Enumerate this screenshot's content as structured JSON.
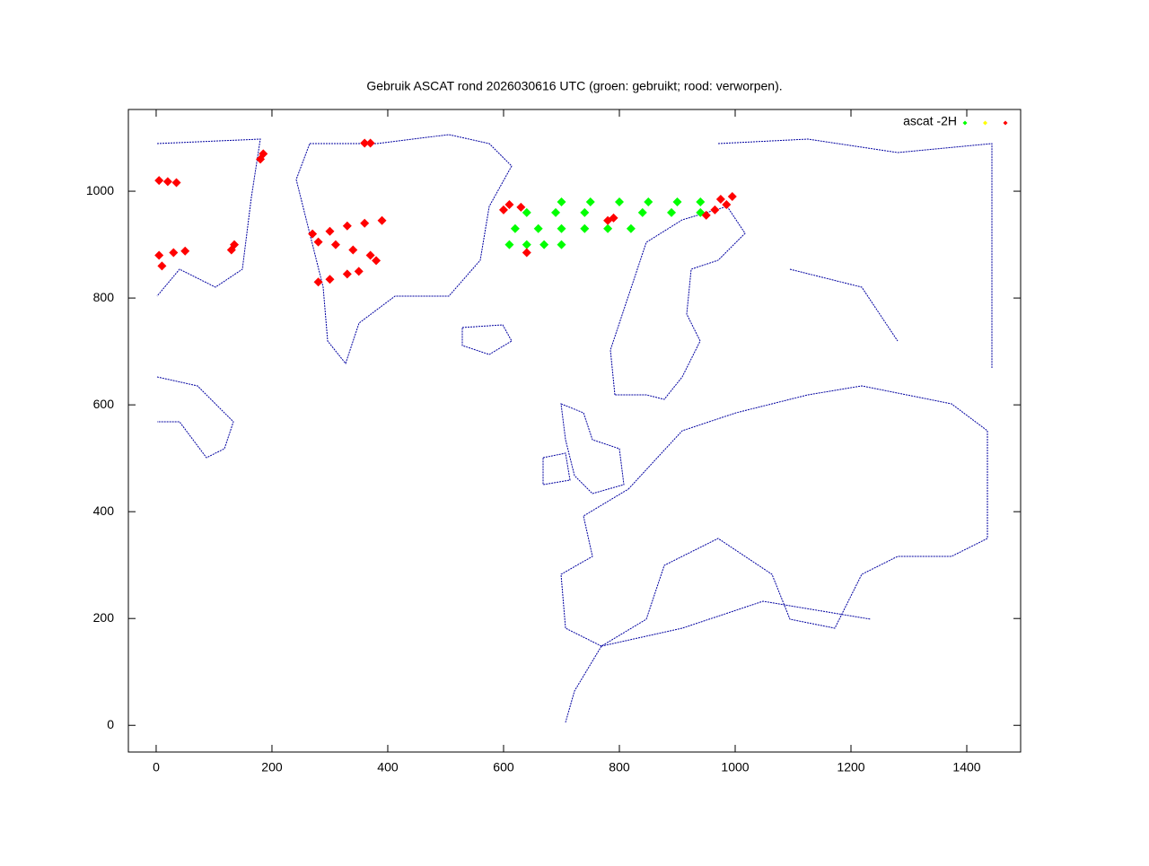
{
  "chart_data": {
    "type": "scatter",
    "title": "Gebruik ASCAT rond 2026030616 UTC (groen: gebruikt; rood: verworpen).",
    "legend_label": "ascat -2H",
    "legend": "top-right",
    "xlim": [
      -48,
      1493
    ],
    "ylim": [
      -50,
      1153
    ],
    "xticks": [
      0,
      200,
      400,
      600,
      800,
      1000,
      1200,
      1400
    ],
    "yticks": [
      0,
      200,
      400,
      600,
      800,
      1000
    ],
    "series": [
      {
        "color": "#00ff00",
        "x": [
          610,
          640,
          670,
          700,
          620,
          660,
          700,
          740,
          780,
          820,
          640,
          690,
          740,
          840,
          890,
          940,
          700,
          750,
          800,
          850,
          900,
          940
        ],
        "values": [
          900,
          900,
          900,
          900,
          930,
          930,
          930,
          930,
          930,
          930,
          960,
          960,
          960,
          960,
          960,
          960,
          980,
          980,
          980,
          980,
          980,
          980
        ]
      },
      {
        "color": "#ffff00",
        "x": [],
        "values": []
      },
      {
        "color": "#ff0000",
        "x": [
          965,
          985,
          975,
          995,
          950,
          610,
          630,
          600,
          790,
          780,
          640,
          270,
          300,
          330,
          360,
          390,
          280,
          310,
          340,
          370,
          380,
          350,
          330,
          300,
          280,
          5,
          20,
          35,
          5,
          30,
          50,
          10,
          130,
          135,
          180,
          185,
          360,
          370
        ],
        "values": [
          965,
          975,
          985,
          990,
          955,
          975,
          970,
          965,
          950,
          945,
          885,
          920,
          925,
          935,
          940,
          945,
          905,
          900,
          890,
          880,
          870,
          850,
          845,
          835,
          830,
          1020,
          1018,
          1016,
          880,
          885,
          888,
          860,
          890,
          900,
          1060,
          1070,
          1090,
          1090
        ]
      }
    ]
  }
}
